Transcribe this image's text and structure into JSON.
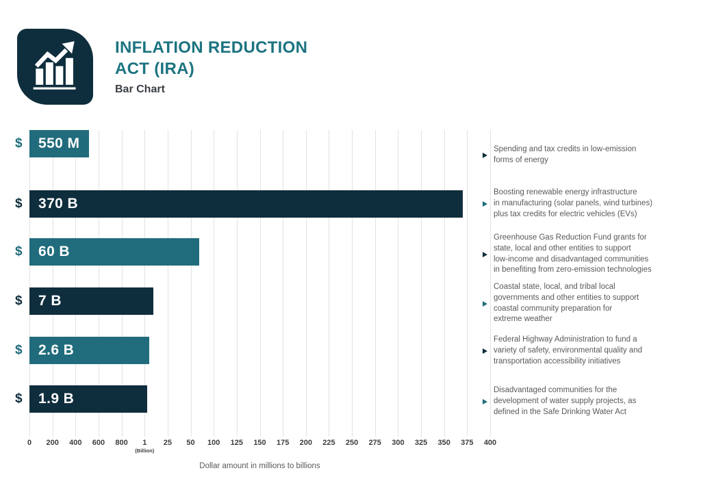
{
  "header": {
    "title": "INFLATION REDUCTION\nACT (IRA)",
    "subtitle": "Bar Chart"
  },
  "colors": {
    "navy": "#0f2e3d",
    "teal": "#216c7c",
    "title_teal": "#1c7380",
    "grid": "#e2e2e2",
    "axis_text": "#3d3d3d",
    "annotation_text": "#595959",
    "bar_label": "#ffffff",
    "background": "#ffffff"
  },
  "chart_data": {
    "type": "bar",
    "orientation": "horizontal",
    "title": "Inflation Reduction Act (IRA) Bar Chart",
    "xlabel": "Dollar amount in millions to billions",
    "grid": true,
    "x_ticks": [
      "0",
      "200",
      "400",
      "600",
      "800",
      "1",
      "25",
      "50",
      "100",
      "125",
      "150",
      "175",
      "200",
      "225",
      "250",
      "275",
      "300",
      "325",
      "350",
      "375",
      "400"
    ],
    "x_tick_sublabel": {
      "index": 5,
      "text": "(Billion)"
    },
    "bars": [
      {
        "currency": "$",
        "label": "370 B",
        "value_billions": 370,
        "color": "navy",
        "width_pct": 94.0,
        "annotation": "Spending and tax credits in low-emission\nforms of energy"
      },
      {
        "currency": "$",
        "label": "60 B",
        "value_billions": 60,
        "color": "teal",
        "width_pct": 36.9,
        "annotation": "Boosting renewable energy infrastructure\nin manufacturing (solar panels, wind turbines)\nplus tax credits for electric vehicles (EVs)"
      },
      {
        "currency": "$",
        "label": "7 B",
        "value_billions": 7,
        "color": "navy",
        "width_pct": 26.9,
        "annotation": "Greenhouse Gas Reduction Fund grants for\nstate, local and other entities to support\nlow-income and disadvantaged communities\nin benefiting from zero-emission technologies"
      },
      {
        "currency": "$",
        "label": "2.6 B",
        "value_billions": 2.6,
        "color": "teal",
        "width_pct": 26.0,
        "annotation": "Coastal state, local, and tribal local\ngovernments and other entities to support\ncoastal community preparation for\nextreme weather"
      },
      {
        "currency": "$",
        "label": "1.9 B",
        "value_billions": 1.9,
        "color": "navy",
        "width_pct": 25.6,
        "annotation": "Federal Highway Administration to fund a\nvariety of safety, environmental quality and\ntransportation accessibility initiatives"
      },
      {
        "currency": "$",
        "label": "550 M",
        "value_billions": 0.55,
        "color": "teal",
        "width_pct": 12.9,
        "annotation": "Disadvantaged communities for the\ndevelopment of water supply projects, as\ndefined in the Safe Drinking Water Act"
      }
    ]
  }
}
